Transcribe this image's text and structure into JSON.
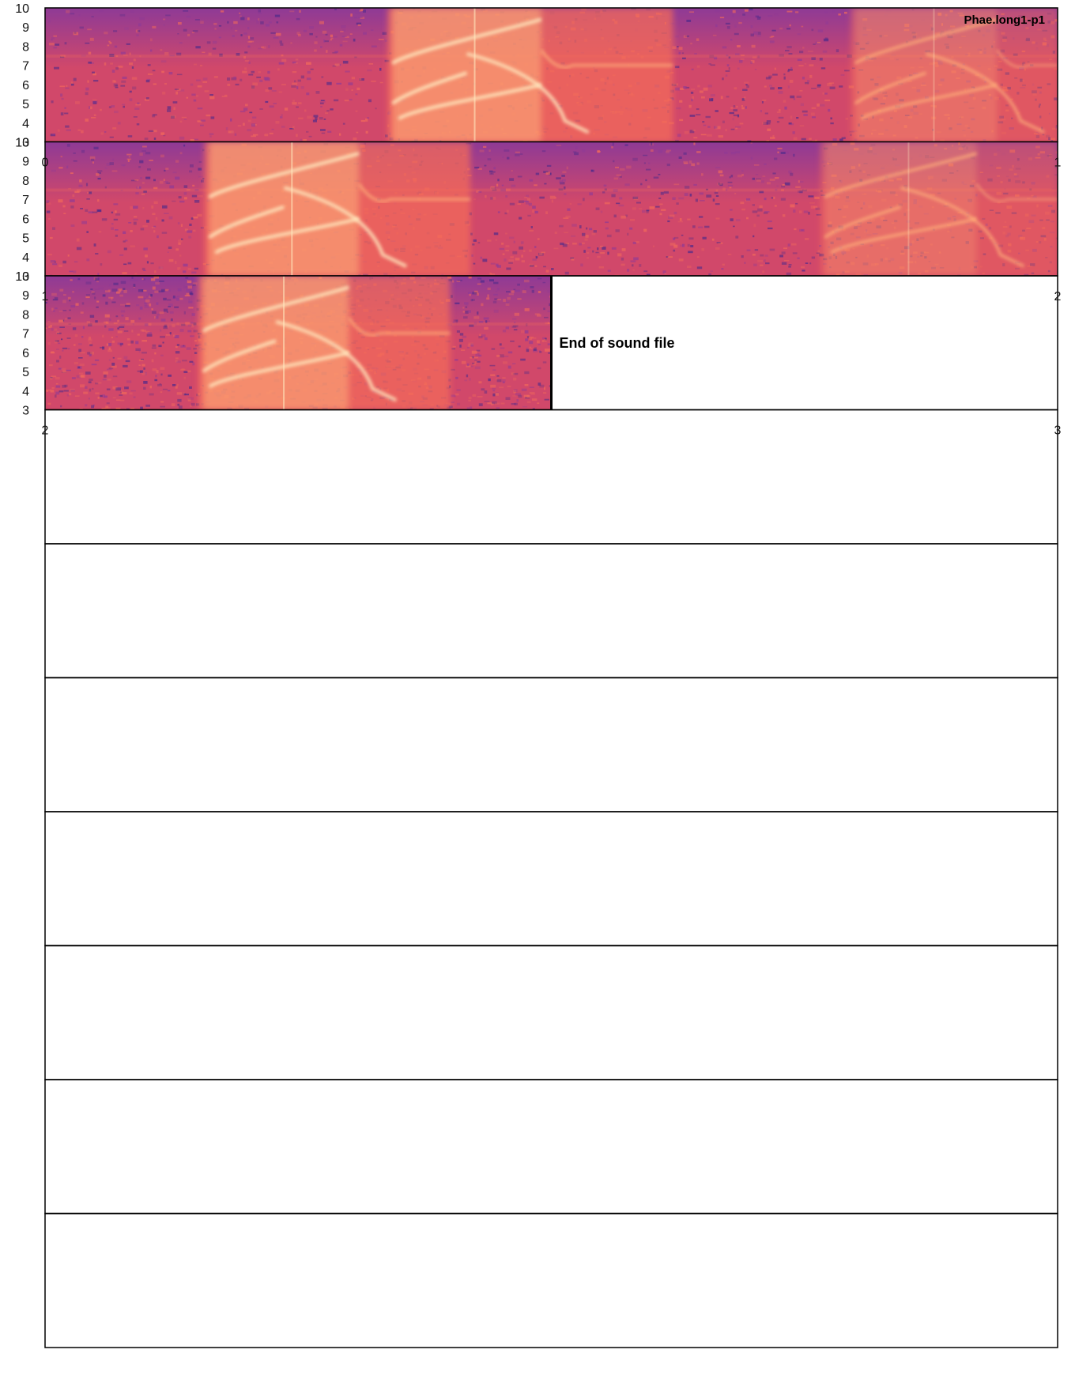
{
  "title": "Phae.long1-p1",
  "end_note": "End of sound file",
  "chart_data": {
    "type": "heatmap",
    "title": "Phae.long1-p1",
    "xlabel": "",
    "ylabel": "",
    "ylim": [
      3,
      10
    ],
    "yticks": [
      3,
      4,
      5,
      6,
      7,
      8,
      9,
      10
    ],
    "palette": [
      "#4b2a8a",
      "#8e3a96",
      "#d1486a",
      "#f36b5a",
      "#ffb07a",
      "#ffe9bf"
    ],
    "panels": [
      {
        "x_range": [
          0,
          1
        ],
        "x_tick_labels": [
          "0",
          "1"
        ],
        "calls": [
          {
            "start": 0.343,
            "peak_end": 0.49,
            "tail_end": 0.62
          },
          {
            "start": 0.8,
            "peak_end": 0.94,
            "tail_end": 1.0,
            "faint": true
          }
        ]
      },
      {
        "x_range": [
          1,
          2
        ],
        "x_tick_labels": [
          "1",
          "2"
        ],
        "calls": [
          {
            "start": 1.162,
            "peak_end": 1.31,
            "tail_end": 1.42
          },
          {
            "start": 1.77,
            "peak_end": 1.92,
            "tail_end": 2.0,
            "faint": true
          }
        ]
      },
      {
        "x_range": [
          2,
          3
        ],
        "x_tick_labels": [
          "2",
          "3"
        ],
        "data_end": 2.5,
        "calls": [
          {
            "start": 2.156,
            "peak_end": 2.3,
            "tail_end": 2.4
          }
        ]
      },
      {
        "x_range": [
          3,
          4
        ],
        "empty": true
      },
      {
        "x_range": [
          4,
          5
        ],
        "empty": true
      },
      {
        "x_range": [
          5,
          6
        ],
        "empty": true
      },
      {
        "x_range": [
          6,
          7
        ],
        "empty": true
      },
      {
        "x_range": [
          7,
          8
        ],
        "empty": true
      },
      {
        "x_range": [
          8,
          9
        ],
        "empty": true
      },
      {
        "x_range": [
          9,
          10
        ],
        "empty": true
      }
    ]
  }
}
